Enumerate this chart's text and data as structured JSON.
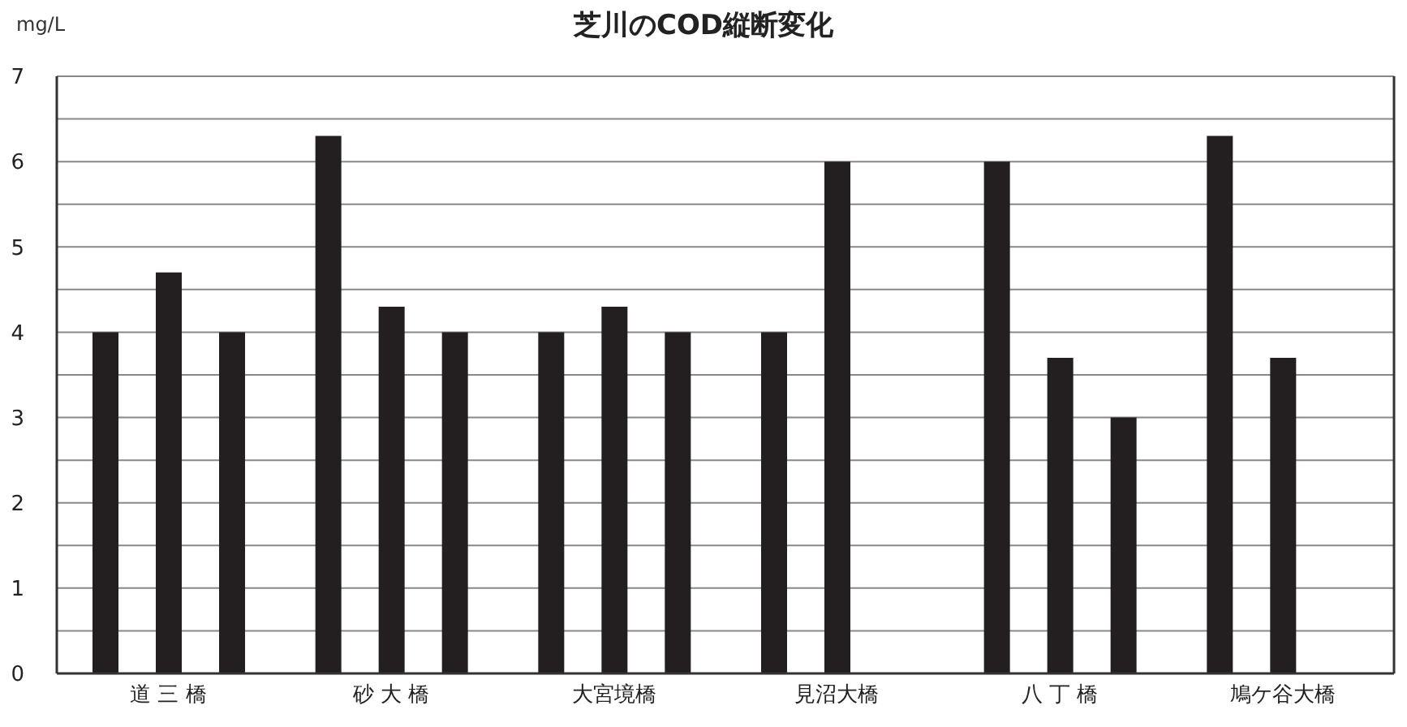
{
  "chart_data": {
    "type": "bar",
    "title": "芝川のCOD縦断変化",
    "ylabel": "mg/L",
    "categories": [
      "道 三 橋",
      "砂 大 橋",
      "大宮境橋",
      "見沼大橋",
      "八 丁 橋",
      "鳩ケ谷大橋"
    ],
    "series": [
      {
        "color": "#231f20",
        "values": [
          4,
          6.3,
          4,
          4,
          6,
          6.3
        ]
      },
      {
        "color": "#231f20",
        "values": [
          4.7,
          4.3,
          4.3,
          6,
          3.7,
          3.7
        ]
      },
      {
        "color": "#231f20",
        "values": [
          4,
          4,
          4,
          null,
          3,
          null
        ]
      }
    ],
    "ylim": [
      0,
      7
    ],
    "yticks": [
      0,
      {
        "value": 0.5,
        "label": null
      },
      1,
      {
        "value": 1.5,
        "label": null
      },
      2,
      {
        "value": 2.5,
        "label": null
      },
      3,
      {
        "value": 3.5,
        "label": null
      },
      4,
      {
        "value": 4.5,
        "label": null
      },
      5,
      {
        "value": 5.5,
        "label": null
      },
      6,
      {
        "value": 6.5,
        "label": null
      },
      7
    ],
    "grid": "y",
    "legend": false
  }
}
